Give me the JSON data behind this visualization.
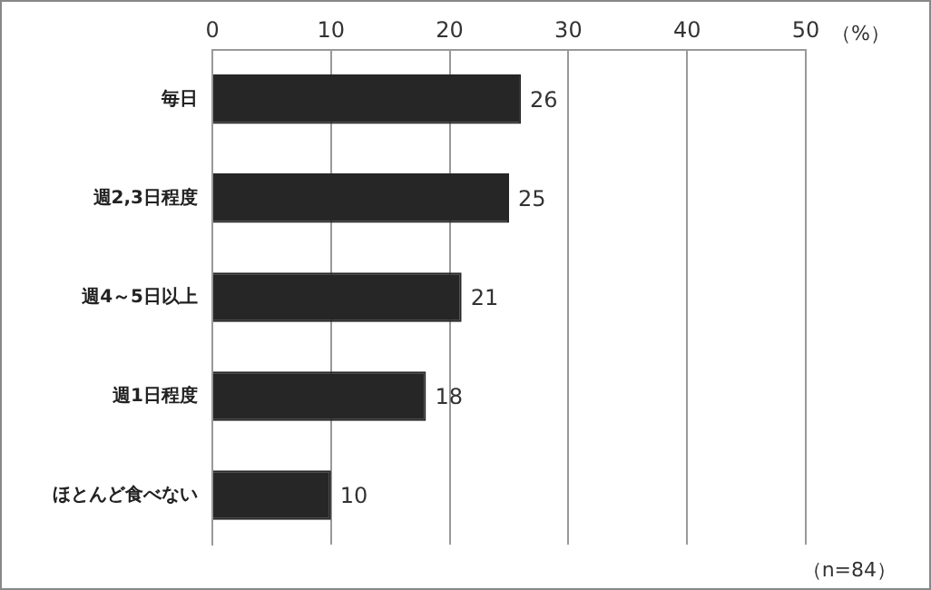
{
  "chart_data": {
    "type": "bar",
    "orientation": "horizontal",
    "categories": [
      "毎日",
      "週2,3日程度",
      "週4～5日以上",
      "週1日程度",
      "ほとんど食べない"
    ],
    "values": [
      26,
      25,
      21,
      18,
      10
    ],
    "color": "#262626",
    "xlim": [
      0,
      50
    ],
    "xticks": [
      0,
      10,
      20,
      30,
      40,
      50
    ],
    "xlabel": "（%）",
    "grid": "x",
    "legend": false,
    "data_labels": true,
    "annotations": [
      "（n=84）"
    ]
  }
}
